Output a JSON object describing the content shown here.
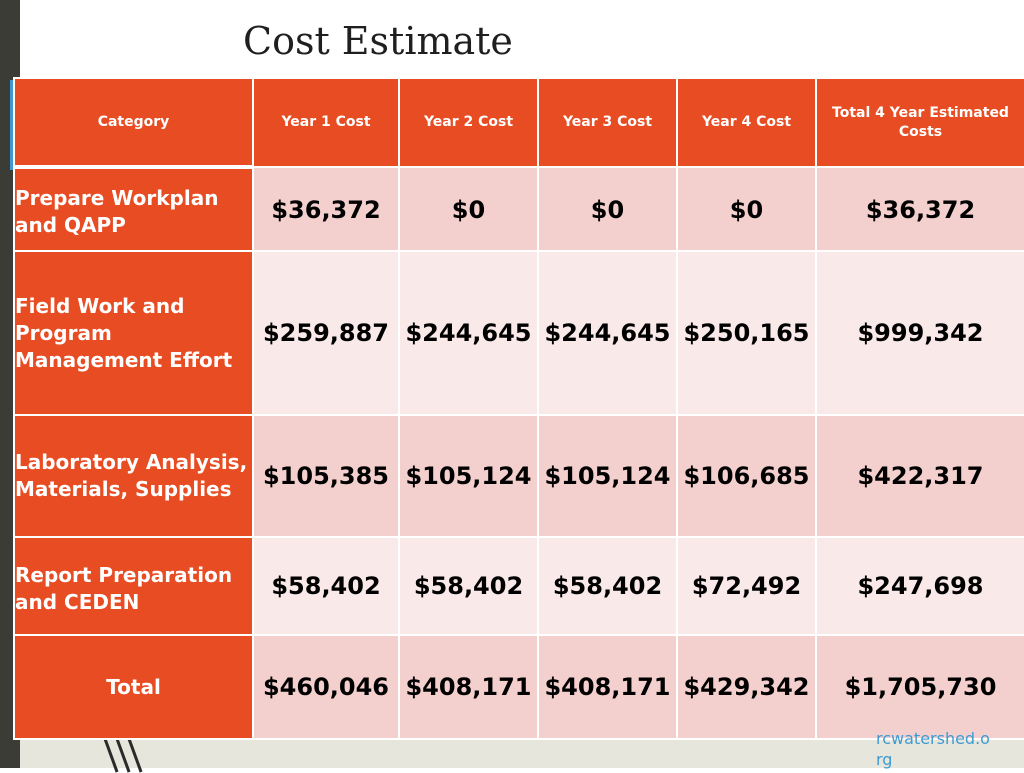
{
  "title": "Cost Estimate",
  "table": {
    "headers": [
      "Category",
      "Year  1 Cost",
      "Year 2 Cost",
      "Year 3 Cost",
      "Year 4 Cost",
      "Total 4 Year Estimated Costs"
    ],
    "rows": [
      {
        "category": "Prepare Workplan and QAPP",
        "values": [
          "$36,372",
          "$0",
          "$0",
          "$0",
          "$36,372"
        ]
      },
      {
        "category": "Field Work and Program Management Effort",
        "values": [
          "$259,887",
          "$244,645",
          "$244,645",
          "$250,165",
          "$999,342"
        ]
      },
      {
        "category": "Laboratory Analysis, Materials, Supplies",
        "values": [
          "$105,385",
          "$105,124",
          "$105,124",
          "$106,685",
          "$422,317"
        ]
      },
      {
        "category": "Report Preparation and CEDEN",
        "values": [
          "$58,402",
          "$58,402",
          "$58,402",
          "$72,492",
          "$247,698"
        ]
      },
      {
        "category": "Total",
        "values": [
          "$460,046",
          "$408,171",
          "$408,171",
          "$429,342",
          "$1,705,730"
        ]
      }
    ]
  },
  "footer": {
    "link_text": "rcwatershed.org"
  },
  "colors": {
    "header_bg": "#e84c22",
    "band_dark": "#f3cfcd",
    "band_light": "#f9e9e8",
    "link": "#3f9ad2"
  }
}
